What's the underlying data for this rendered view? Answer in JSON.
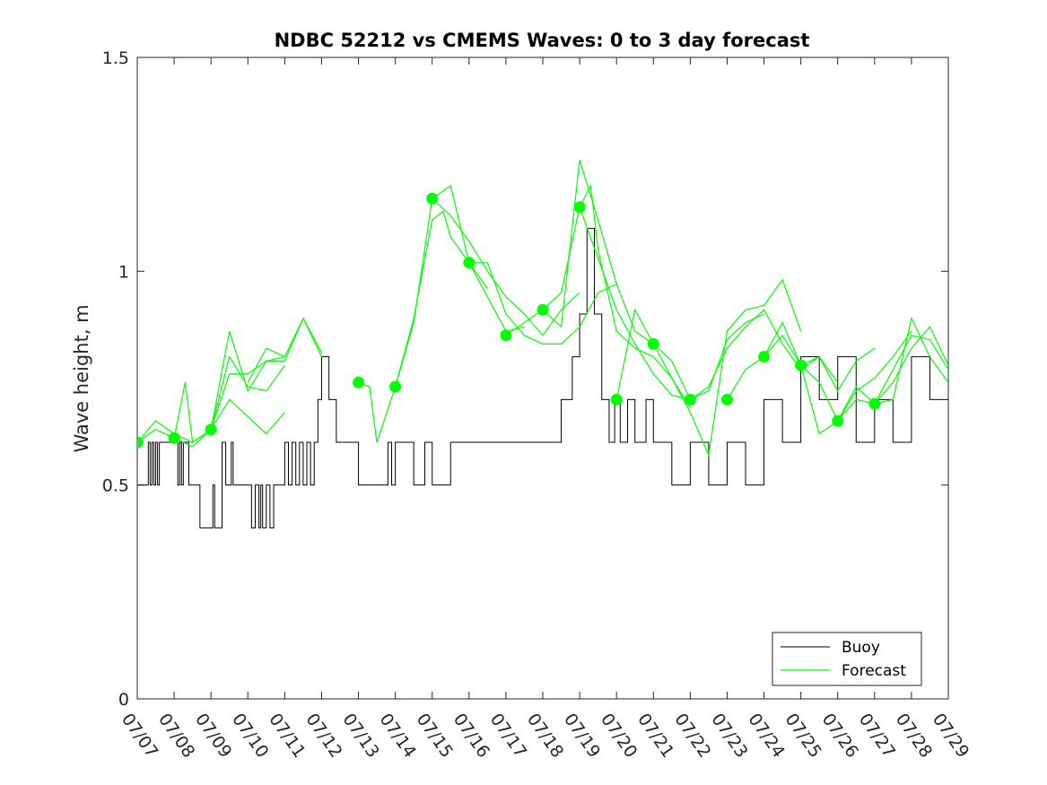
{
  "chart_data": {
    "type": "line",
    "title": "NDBC 52212 vs CMEMS Waves: 0 to 3 day forecast",
    "xlabel": "",
    "ylabel": "Wave height, m",
    "x_ticks": [
      "07/07",
      "07/08",
      "07/09",
      "07/10",
      "07/11",
      "07/12",
      "07/13",
      "07/14",
      "07/15",
      "07/16",
      "07/17",
      "07/18",
      "07/19",
      "07/20",
      "07/21",
      "07/22",
      "07/23",
      "07/24",
      "07/25",
      "07/26",
      "07/27",
      "07/28",
      "07/29"
    ],
    "xlim": [
      "07/07",
      "07/29"
    ],
    "y_ticks": [
      0,
      0.5,
      1,
      1.5
    ],
    "y_tick_labels": [
      "0",
      "0.5",
      "1",
      "1.5"
    ],
    "ylim": [
      0,
      1.5
    ],
    "grid": false,
    "legend": {
      "position": "bottom-right",
      "entries": [
        "Buoy",
        "Forecast"
      ]
    },
    "colors": {
      "buoy": "#000000",
      "forecast": "#00ff00"
    },
    "series": [
      {
        "name": "Buoy",
        "style": "line",
        "x_days": [
          0,
          0.3,
          0.35,
          0.4,
          0.45,
          0.5,
          0.55,
          0.6,
          0.7,
          0.8,
          1,
          1.1,
          1.15,
          1.2,
          1.25,
          1.3,
          1.4,
          1.5,
          1.6,
          1.7,
          1.8,
          2,
          2.05,
          2.1,
          2.2,
          2.3,
          2.4,
          2.5,
          2.55,
          2.6,
          2.7,
          3,
          3.1,
          3.2,
          3.3,
          3.35,
          3.4,
          3.5,
          3.6,
          3.7,
          3.8,
          3.9,
          4,
          4.1,
          4.2,
          4.3,
          4.4,
          4.5,
          4.6,
          4.7,
          4.8,
          4.9,
          5,
          5.2,
          5.4,
          5.6,
          5.8,
          6,
          6.5,
          6.7,
          6.8,
          6.9,
          7,
          7.5,
          7.8,
          8,
          8.5,
          9,
          9.5,
          10,
          10.5,
          11,
          11.5,
          11.8,
          12,
          12.2,
          12.4,
          12.6,
          12.8,
          12.95,
          13.1,
          13.3,
          13.5,
          13.8,
          14,
          14.5,
          15,
          15.5,
          16,
          16.5,
          17,
          17.5,
          18,
          18.5,
          19,
          19.5,
          20,
          20.5,
          21,
          21.5,
          22
        ],
        "y": [
          0.5,
          0.6,
          0.5,
          0.6,
          0.5,
          0.6,
          0.5,
          0.6,
          0.6,
          0.6,
          0.6,
          0.5,
          0.6,
          0.5,
          0.6,
          0.6,
          0.5,
          0.5,
          0.5,
          0.4,
          0.4,
          0.4,
          0.5,
          0.4,
          0.4,
          0.6,
          0.5,
          0.5,
          0.6,
          0.5,
          0.5,
          0.5,
          0.4,
          0.5,
          0.4,
          0.5,
          0.4,
          0.5,
          0.4,
          0.5,
          0.5,
          0.5,
          0.6,
          0.5,
          0.6,
          0.5,
          0.6,
          0.5,
          0.6,
          0.5,
          0.6,
          0.7,
          0.8,
          0.7,
          0.6,
          0.6,
          0.6,
          0.5,
          0.5,
          0.5,
          0.6,
          0.5,
          0.6,
          0.5,
          0.6,
          0.5,
          0.6,
          0.6,
          0.6,
          0.6,
          0.6,
          0.6,
          0.7,
          0.8,
          0.9,
          1.1,
          0.9,
          0.7,
          0.6,
          0.7,
          0.6,
          0.7,
          0.6,
          0.7,
          0.6,
          0.5,
          0.6,
          0.5,
          0.6,
          0.5,
          0.7,
          0.6,
          0.8,
          0.7,
          0.8,
          0.6,
          0.7,
          0.6,
          0.8,
          0.7,
          0.7
        ]
      },
      {
        "name": "Forecast",
        "style": "line",
        "segments": [
          {
            "x_days": [
              0,
              0.5,
              1,
              1.5,
              2,
              2.5,
              3,
              3.5,
              4
            ],
            "y": [
              0.6,
              0.63,
              0.61,
              0.59,
              0.63,
              0.7,
              0.66,
              0.62,
              0.67
            ]
          },
          {
            "x_days": [
              0,
              0.5,
              1,
              1.5,
              2,
              2.5,
              3,
              3.5,
              4
            ],
            "y": [
              0.6,
              0.65,
              0.62,
              0.6,
              0.63,
              0.8,
              0.73,
              0.72,
              0.78
            ]
          },
          {
            "x_days": [
              1,
              1.3,
              1.5,
              2,
              2.5,
              3,
              3.5,
              4
            ],
            "y": [
              0.61,
              0.74,
              0.6,
              0.63,
              0.86,
              0.72,
              0.79,
              0.8
            ]
          },
          {
            "x_days": [
              2,
              2.5,
              3,
              3.5,
              4,
              4.5,
              5
            ],
            "y": [
              0.63,
              0.76,
              0.76,
              0.79,
              0.79,
              0.89,
              0.81
            ]
          },
          {
            "x_days": [
              3,
              3.5,
              4,
              4.5,
              5
            ],
            "y": [
              0.74,
              0.82,
              0.8,
              0.89,
              0.8
            ]
          },
          {
            "x_days": [
              6,
              6.3,
              6.5,
              7,
              7.5,
              8,
              8.5,
              9,
              9.5
            ],
            "y": [
              0.74,
              0.73,
              0.6,
              0.73,
              0.88,
              1.17,
              1.2,
              1.02,
              0.96
            ]
          },
          {
            "x_days": [
              7,
              7.5,
              8,
              8.3,
              8.5,
              9,
              9.5,
              10,
              10.5
            ],
            "y": [
              0.73,
              0.89,
              1.12,
              1.14,
              1.08,
              1.02,
              0.94,
              0.86,
              0.87
            ]
          },
          {
            "x_days": [
              8,
              8.5,
              9,
              9.5,
              10,
              10.5,
              11,
              11.5,
              12
            ],
            "y": [
              1.17,
              1.13,
              1.07,
              1.0,
              0.94,
              0.9,
              0.85,
              0.91,
              0.95
            ]
          },
          {
            "x_days": [
              9,
              9.5,
              10,
              10.5,
              11,
              11.5,
              12,
              12.5,
              13
            ],
            "y": [
              1.02,
              1.02,
              0.9,
              0.85,
              0.83,
              0.83,
              0.87,
              0.95,
              0.97
            ]
          },
          {
            "x_days": [
              10,
              10.5,
              11,
              11.5,
              12,
              12.5,
              13,
              13.5,
              14
            ],
            "y": [
              0.85,
              0.88,
              0.91,
              0.87,
              1.26,
              1.12,
              0.97,
              0.86,
              0.83
            ]
          },
          {
            "x_days": [
              11,
              11.5,
              12,
              12.3,
              12.5,
              13,
              13.5,
              14,
              14.5,
              15
            ],
            "y": [
              0.91,
              0.95,
              1.15,
              1.2,
              1.05,
              0.86,
              0.82,
              0.8,
              0.75,
              0.68
            ]
          },
          {
            "x_days": [
              12,
              12.5,
              13,
              13.5,
              14,
              14.5,
              15
            ],
            "y": [
              1.15,
              1.03,
              0.91,
              0.83,
              0.76,
              0.71,
              0.7
            ]
          },
          {
            "x_days": [
              13,
              13.5,
              14,
              14.5,
              15,
              15.5,
              16,
              16.5,
              17
            ],
            "y": [
              0.7,
              0.91,
              0.83,
              0.79,
              0.7,
              0.72,
              0.84,
              0.88,
              0.9
            ]
          },
          {
            "x_days": [
              14,
              14.5,
              15,
              15.5,
              16,
              16.5,
              17,
              17.5,
              18
            ],
            "y": [
              0.83,
              0.75,
              0.67,
              0.57,
              0.86,
              0.91,
              0.92,
              0.98,
              0.86
            ]
          },
          {
            "x_days": [
              15,
              15.5,
              16,
              16.5,
              17,
              17.5,
              18,
              18.5,
              19
            ],
            "y": [
              0.7,
              0.73,
              0.82,
              0.87,
              0.91,
              0.83,
              0.77,
              0.8,
              0.74
            ]
          },
          {
            "x_days": [
              16,
              16.5,
              17,
              17.5,
              18,
              18.5,
              19,
              19.5,
              20
            ],
            "y": [
              0.7,
              0.77,
              0.8,
              0.85,
              0.78,
              0.8,
              0.72,
              0.79,
              0.82
            ]
          },
          {
            "x_days": [
              17,
              17.5,
              18,
              18.5,
              19,
              19.5,
              20,
              20.5,
              21
            ],
            "y": [
              0.8,
              0.88,
              0.78,
              0.62,
              0.65,
              0.72,
              0.75,
              0.8,
              0.86
            ]
          },
          {
            "x_days": [
              18,
              18.5,
              19,
              19.5,
              20,
              20.5,
              21,
              21.5,
              22
            ],
            "y": [
              0.78,
              0.74,
              0.65,
              0.7,
              0.69,
              0.77,
              0.85,
              0.84,
              0.77
            ]
          },
          {
            "x_days": [
              19,
              19.5,
              20,
              20.5,
              21,
              21.5,
              22
            ],
            "y": [
              0.65,
              0.73,
              0.69,
              0.7,
              0.89,
              0.8,
              0.74
            ]
          },
          {
            "x_days": [
              20,
              20.5,
              21,
              21.5,
              22
            ],
            "y": [
              0.69,
              0.74,
              0.82,
              0.87,
              0.78
            ]
          }
        ],
        "markers": {
          "x_days": [
            0,
            1,
            2,
            6,
            7,
            8,
            9,
            10,
            11,
            12,
            13,
            14,
            15,
            16,
            17,
            18,
            19,
            20
          ],
          "y": [
            0.6,
            0.61,
            0.63,
            0.74,
            0.73,
            1.17,
            1.02,
            0.85,
            0.91,
            1.15,
            0.7,
            0.83,
            0.7,
            0.7,
            0.8,
            0.78,
            0.65,
            0.69
          ]
        }
      }
    ]
  }
}
